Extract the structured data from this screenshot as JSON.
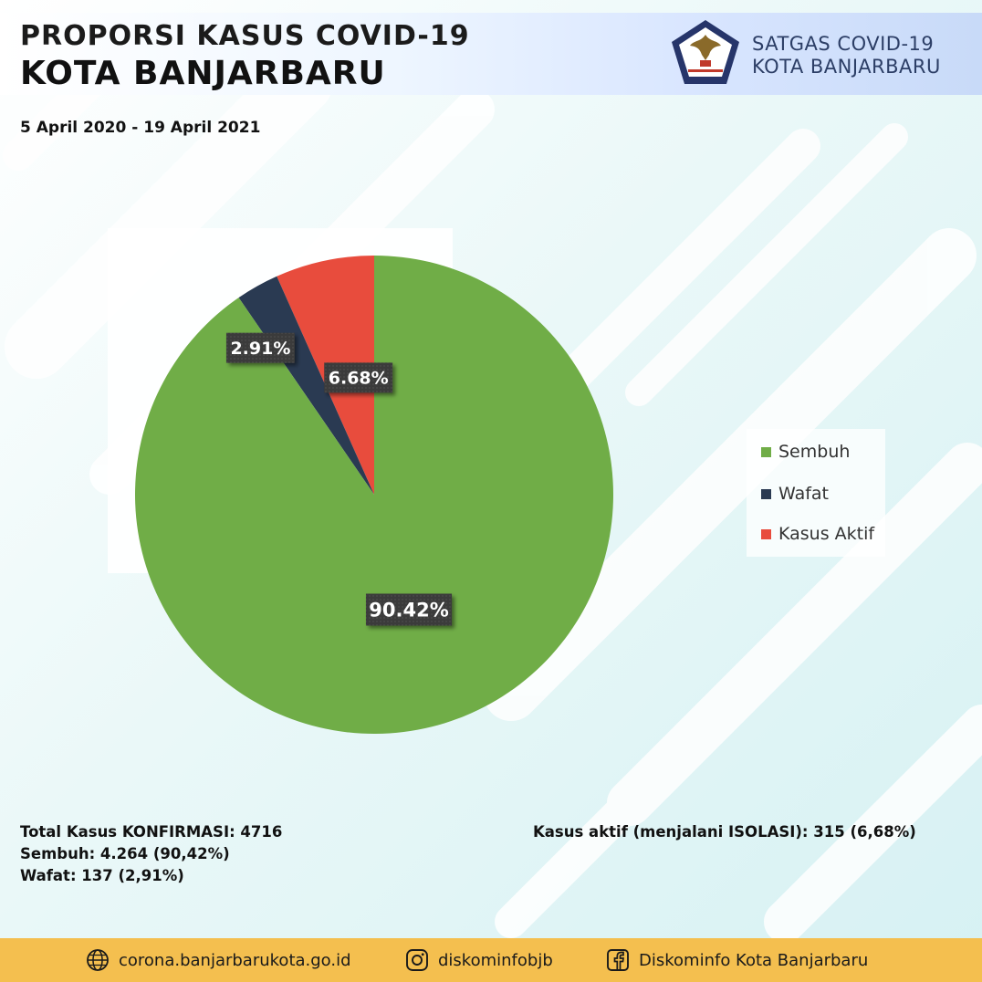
{
  "header": {
    "title_line1": "PROPORSI KASUS COVID-19",
    "title_line2": "KOTA BANJARBARU",
    "period": "5 April 2020 - 19 April 2021",
    "org_line1": "SATGAS COVID-19",
    "org_line2": "KOTA BANJARBARU"
  },
  "chart_data": {
    "type": "pie",
    "title": "",
    "categories": [
      "Sembuh",
      "Wafat",
      "Kasus Aktif"
    ],
    "values": [
      90.42,
      2.91,
      6.68
    ],
    "labels": [
      "90.42%",
      "2.91%",
      "6.68%"
    ],
    "colors": [
      "#70ad47",
      "#2a3a52",
      "#e84c3d"
    ],
    "legend": "right",
    "legend_entries": [
      "Sembuh",
      "Wafat",
      "Kasus Aktif"
    ]
  },
  "summary": {
    "total": "Total Kasus KONFIRMASI: 4716",
    "sembuh": "Sembuh: 4.264 (90,42%)",
    "wafat": "Wafat: 137 (2,91%)",
    "aktif": "Kasus aktif (menjalani ISOLASI): 315 (6,68%)"
  },
  "footer": {
    "website": "corona.banjarbarukota.go.id",
    "instagram": "diskominfobjb",
    "facebook": "Diskominfo Kota Banjarbaru",
    "icons": [
      "globe-icon",
      "instagram-icon",
      "facebook-icon"
    ]
  },
  "theme": {
    "accent": "#f4bf4f",
    "background_tint": "#dff3f5"
  }
}
